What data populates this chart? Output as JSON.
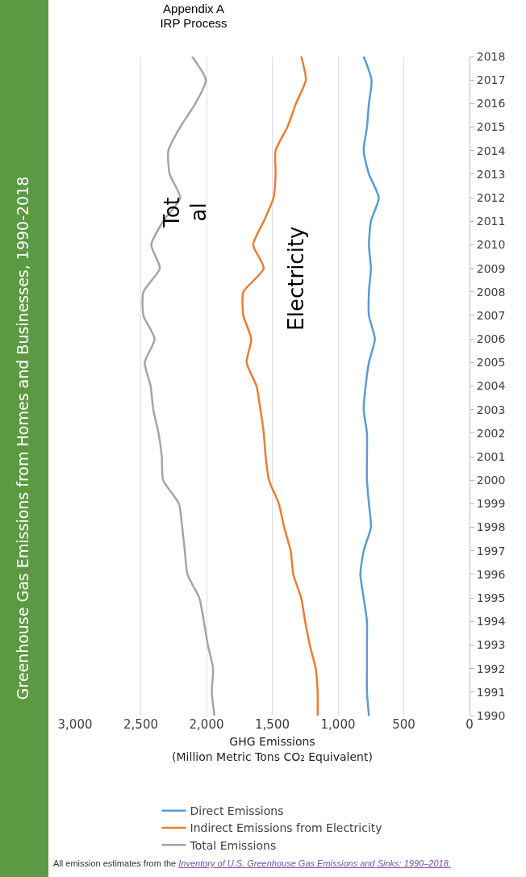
{
  "chart_data": {
    "type": "line",
    "orientation": "horizontal",
    "title": "Greenhouse Gas Emissions from Homes and Businesses, 1990-2018",
    "xlabel": "GHG Emissions\n(Million Metric Tons CO₂ Equivalent)",
    "categories": [
      "2018",
      "2017",
      "2016",
      "2015",
      "2014",
      "2013",
      "2012",
      "2011",
      "2010",
      "2009",
      "2008",
      "2007",
      "2006",
      "2005",
      "2004",
      "2003",
      "2002",
      "2001",
      "2000",
      "1999",
      "1998",
      "1997",
      "1996",
      "1995",
      "1994",
      "1993",
      "1992",
      "1991",
      "1990"
    ],
    "series": [
      {
        "name": "Direct Emissions",
        "color": "#5b9bd5",
        "values": [
          805,
          745,
          765,
          780,
          805,
          765,
          690,
          750,
          765,
          750,
          765,
          765,
          720,
          765,
          790,
          805,
          780,
          780,
          780,
          765,
          750,
          805,
          830,
          805,
          780,
          780,
          780,
          780,
          765
        ]
      },
      {
        "name": "Indirect Emissions from Electricity",
        "color": "#ed7d31",
        "values": [
          1280,
          1245,
          1320,
          1385,
          1475,
          1475,
          1490,
          1565,
          1645,
          1565,
          1720,
          1720,
          1660,
          1695,
          1620,
          1590,
          1565,
          1550,
          1525,
          1450,
          1410,
          1360,
          1340,
          1280,
          1250,
          1215,
          1170,
          1155,
          1155
        ]
      },
      {
        "name": "Total Emissions",
        "color": "#a5a5a5",
        "values": [
          2110,
          2005,
          2085,
          2200,
          2290,
          2280,
          2200,
          2330,
          2420,
          2355,
          2480,
          2480,
          2395,
          2470,
          2425,
          2405,
          2365,
          2340,
          2330,
          2210,
          2185,
          2165,
          2145,
          2055,
          2020,
          1990,
          1950,
          1960,
          1940
        ]
      }
    ],
    "xlim": [
      3000,
      0
    ],
    "xticks": [
      {
        "value": 0,
        "label": "0"
      },
      {
        "value": 500,
        "label": "500"
      },
      {
        "value": 1000,
        "label": "1,000"
      },
      {
        "value": 1500,
        "label": "1,500"
      },
      {
        "value": 2000,
        "label": "2,000"
      },
      {
        "value": 2500,
        "label": "2,500"
      },
      {
        "value": 3000,
        "label": "3,000"
      }
    ],
    "grid": "x",
    "legend": "bottom",
    "annotations": [
      "Appendix A\nIRP Process",
      "Tot\nal",
      "Electricity",
      "All emission estimates from the",
      "Inventory of U.S. Greenhouse Gas Emissions and Sinks: 1990–2018."
    ]
  }
}
